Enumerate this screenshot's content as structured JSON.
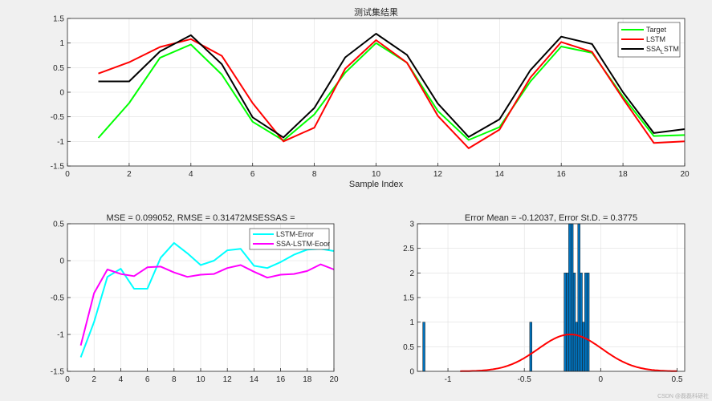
{
  "watermark": "CSDN @磊磊科研社",
  "chart_data": [
    {
      "type": "line",
      "title": "测试集结果",
      "xlabel": "Sample Index",
      "ylabel": "",
      "xlim": [
        0,
        20
      ],
      "ylim": [
        -1.5,
        1.5
      ],
      "xticks": [
        0,
        2,
        4,
        6,
        8,
        10,
        12,
        14,
        16,
        18,
        20
      ],
      "yticks": [
        -1.5,
        -1,
        -0.5,
        0,
        0.5,
        1,
        1.5
      ],
      "grid": true,
      "legend_position": "top-right",
      "x": [
        1,
        2,
        3,
        4,
        5,
        6,
        7,
        8,
        9,
        10,
        11,
        12,
        13,
        14,
        15,
        16,
        17,
        18,
        19,
        20
      ],
      "series": [
        {
          "name": "Target",
          "color": "#00ff00",
          "values": [
            -0.93,
            -0.22,
            0.7,
            0.97,
            0.36,
            -0.6,
            -0.98,
            -0.45,
            0.4,
            1.0,
            0.6,
            -0.38,
            -0.97,
            -0.71,
            0.22,
            0.93,
            0.8,
            -0.09,
            -0.89,
            -0.87
          ]
        },
        {
          "name": "LSTM",
          "color": "#ff0000",
          "values": [
            0.38,
            0.61,
            0.92,
            1.08,
            0.74,
            -0.22,
            -1.0,
            -0.72,
            0.48,
            1.06,
            0.6,
            -0.48,
            -1.14,
            -0.76,
            0.3,
            1.02,
            0.82,
            -0.13,
            -1.03,
            -1.0
          ]
        },
        {
          "name": "SSA_LSTM",
          "color": "#000000",
          "values": [
            0.22,
            0.22,
            0.83,
            1.16,
            0.57,
            -0.51,
            -0.92,
            -0.32,
            0.71,
            1.19,
            0.76,
            -0.23,
            -0.91,
            -0.55,
            0.45,
            1.13,
            0.98,
            0.0,
            -0.83,
            -0.75
          ]
        }
      ]
    },
    {
      "type": "line",
      "title": "MSE = 0.099052, RMSE = 0.31472MSESSAS =",
      "xlabel": "",
      "ylabel": "",
      "xlim": [
        0,
        20
      ],
      "ylim": [
        -1.5,
        0.5
      ],
      "xticks": [
        0,
        2,
        4,
        6,
        8,
        10,
        12,
        14,
        16,
        18,
        20
      ],
      "yticks": [
        -1.5,
        -1,
        -0.5,
        0,
        0.5
      ],
      "grid": true,
      "legend_position": "top-right",
      "x": [
        1,
        2,
        3,
        4,
        5,
        6,
        7,
        8,
        9,
        10,
        11,
        12,
        13,
        14,
        15,
        16,
        17,
        18,
        19,
        20
      ],
      "series": [
        {
          "name": "LSTM-Error",
          "color": "#00ffff",
          "values": [
            -1.31,
            -0.83,
            -0.22,
            -0.11,
            -0.38,
            -0.38,
            0.04,
            0.24,
            0.1,
            -0.06,
            0.0,
            0.14,
            0.16,
            -0.07,
            -0.1,
            -0.02,
            0.08,
            0.15,
            0.16,
            0.13
          ]
        },
        {
          "name": "SSA-LSTM-Eoor",
          "color": "#ff00ff",
          "values": [
            -1.15,
            -0.44,
            -0.12,
            -0.18,
            -0.21,
            -0.09,
            -0.08,
            -0.16,
            -0.22,
            -0.19,
            -0.18,
            -0.1,
            -0.06,
            -0.15,
            -0.23,
            -0.19,
            -0.18,
            -0.14,
            -0.05,
            -0.12
          ]
        }
      ]
    },
    {
      "type": "histogram",
      "title": "Error Mean = -0.12037, Error St.D. = 0.3775",
      "xlabel": "",
      "ylabel": "",
      "xlim": [
        -1.2,
        0.55
      ],
      "ylim": [
        0,
        3
      ],
      "xticks": [
        -1,
        -0.5,
        0,
        0.5
      ],
      "yticks": [
        0,
        0.5,
        1,
        1.5,
        2,
        2.5,
        3
      ],
      "grid": true,
      "bar_color": "#0072bd",
      "bins": [
        {
          "x0": -1.165,
          "x1": -1.15,
          "count": 1
        },
        {
          "x0": -0.465,
          "x1": -0.45,
          "count": 1
        },
        {
          "x0": -0.24,
          "x1": -0.225,
          "count": 2
        },
        {
          "x0": -0.225,
          "x1": -0.21,
          "count": 2
        },
        {
          "x0": -0.21,
          "x1": -0.195,
          "count": 3
        },
        {
          "x0": -0.195,
          "x1": -0.18,
          "count": 3
        },
        {
          "x0": -0.18,
          "x1": -0.165,
          "count": 2
        },
        {
          "x0": -0.165,
          "x1": -0.15,
          "count": 1
        },
        {
          "x0": -0.15,
          "x1": -0.135,
          "count": 3
        },
        {
          "x0": -0.135,
          "x1": -0.12,
          "count": 2
        },
        {
          "x0": -0.12,
          "x1": -0.105,
          "count": 1
        },
        {
          "x0": -0.105,
          "x1": -0.09,
          "count": 2
        },
        {
          "x0": -0.09,
          "x1": -0.075,
          "count": 2
        }
      ],
      "fit_curve": {
        "type": "normal",
        "mean": -0.2,
        "std": 0.21,
        "peak": 0.75,
        "color": "#ff0000",
        "x_range": [
          -0.92,
          0.5
        ]
      }
    }
  ]
}
